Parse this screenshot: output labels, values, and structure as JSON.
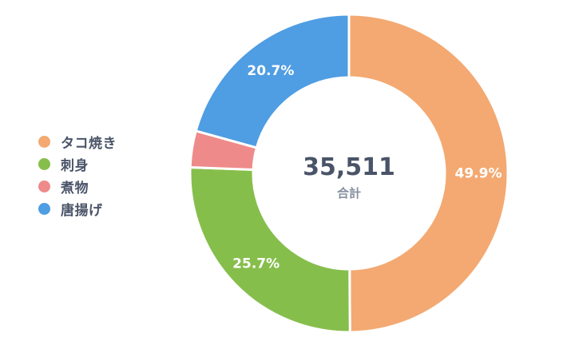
{
  "chart_data": {
    "type": "pie",
    "style": "donut",
    "legend_position": "left",
    "categories": [
      "タコ焼き",
      "刺身",
      "煮物",
      "唐揚げ"
    ],
    "values": [
      49.9,
      25.7,
      3.7,
      20.7
    ],
    "value_labels": [
      "49.9%",
      "25.7%",
      "",
      "20.7%"
    ],
    "colors": [
      "#f3a971",
      "#86be4c",
      "#ef8a8a",
      "#4f9de2"
    ],
    "total": "35,511",
    "total_label": "合計"
  }
}
